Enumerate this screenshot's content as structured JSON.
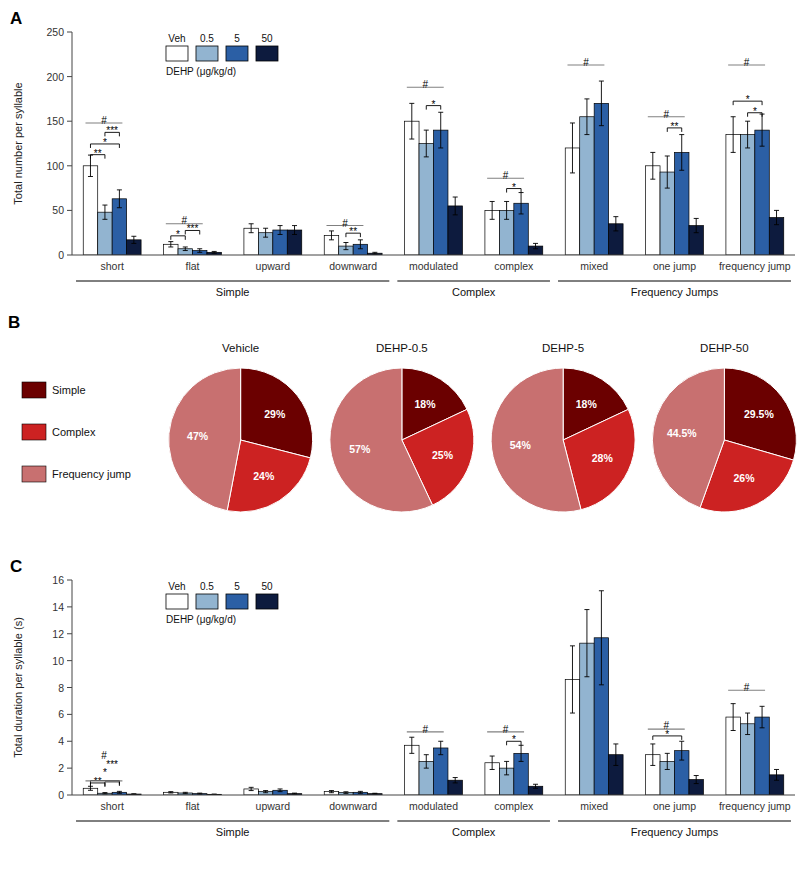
{
  "chart_data": [
    {
      "type": "bar",
      "title": "A",
      "categories": [
        "short",
        "flat",
        "upward",
        "downward",
        "modulated",
        "complex",
        "mixed",
        "one jump",
        "frequency jump"
      ],
      "series": [
        {
          "name": "Veh",
          "color": "#FFFFFF",
          "values": [
            100,
            12,
            30,
            22,
            150,
            50,
            120,
            100,
            135
          ],
          "errors": [
            12,
            3,
            5,
            5,
            20,
            10,
            28,
            15,
            20
          ]
        },
        {
          "name": "0.5",
          "color": "#92B4D0",
          "values": [
            48,
            7,
            25,
            10,
            125,
            50,
            155,
            93,
            135
          ],
          "errors": [
            8,
            2,
            5,
            4,
            15,
            10,
            20,
            18,
            15
          ]
        },
        {
          "name": "5",
          "color": "#2B5FA5",
          "values": [
            63,
            5,
            28,
            12,
            140,
            58,
            170,
            115,
            140
          ],
          "errors": [
            10,
            2,
            5,
            5,
            20,
            12,
            25,
            20,
            18
          ]
        },
        {
          "name": "50",
          "color": "#0D1B3E",
          "values": [
            17,
            3,
            28,
            2,
            55,
            10,
            35,
            33,
            42
          ],
          "errors": [
            4,
            1,
            5,
            1,
            10,
            3,
            8,
            8,
            8
          ]
        }
      ],
      "ylabel": "Total number per syllable",
      "ylim": [
        0,
        250
      ],
      "yticks": [
        0,
        50,
        100,
        150,
        200,
        250
      ],
      "grid": false,
      "legend": "top-left",
      "legend_title": "DEHP (μg/kg/d)",
      "groups": [
        {
          "label": "Simple",
          "from": "short",
          "to": "downward"
        },
        {
          "label": "Complex",
          "from": "modulated",
          "to": "complex"
        },
        {
          "label": "Frequency Jumps",
          "from": "mixed",
          "to": "frequency jump"
        }
      ],
      "annotations": [
        {
          "text": "**",
          "category": "short",
          "from": "Veh",
          "to": "0.5",
          "y": 108,
          "line_style": "bracket",
          "color": "black"
        },
        {
          "text": "*",
          "category": "short",
          "from": "Veh",
          "to": "5",
          "y": 120,
          "line_style": "bracket",
          "color": "black"
        },
        {
          "text": "***",
          "category": "short",
          "from": "0.5",
          "to": "5",
          "y": 133,
          "line_style": "bracket",
          "color": "black"
        },
        {
          "text": "#",
          "category": "short",
          "from": "Veh",
          "to": "5",
          "y": 148,
          "line_style": "solid",
          "color": "gray"
        },
        {
          "text": "*",
          "category": "flat",
          "from": "Veh",
          "to": "0.5",
          "y": 17,
          "line_style": "bracket",
          "color": "black"
        },
        {
          "text": "***",
          "category": "flat",
          "from": "0.5",
          "to": "5",
          "y": 23,
          "line_style": "bracket",
          "color": "black"
        },
        {
          "text": "#",
          "category": "flat",
          "from": "Veh",
          "to": "5",
          "y": 35,
          "line_style": "solid",
          "color": "gray"
        },
        {
          "text": "**",
          "category": "downward",
          "from": "0.5",
          "to": "5",
          "y": 20,
          "line_style": "bracket",
          "color": "black"
        },
        {
          "text": "#",
          "category": "downward",
          "from": "Veh",
          "to": "5",
          "y": 33,
          "line_style": "solid",
          "color": "gray"
        },
        {
          "text": "*",
          "category": "modulated",
          "from": "0.5",
          "to": "5",
          "y": 163,
          "line_style": "bracket",
          "color": "black"
        },
        {
          "text": "#",
          "category": "modulated",
          "from": "Veh",
          "to": "5",
          "y": 188,
          "line_style": "solid",
          "color": "gray"
        },
        {
          "text": "*",
          "category": "complex",
          "from": "0.5",
          "to": "5",
          "y": 70,
          "line_style": "bracket",
          "color": "black"
        },
        {
          "text": "#",
          "category": "complex",
          "from": "Veh",
          "to": "5",
          "y": 86,
          "line_style": "solid",
          "color": "gray"
        },
        {
          "text": "#",
          "category": "mixed",
          "from": "Veh",
          "to": "5",
          "y": 213,
          "line_style": "solid",
          "color": "gray"
        },
        {
          "text": "**",
          "category": "one jump",
          "from": "0.5",
          "to": "5",
          "y": 138,
          "line_style": "bracket",
          "color": "black"
        },
        {
          "text": "#",
          "category": "one jump",
          "from": "Veh",
          "to": "5",
          "y": 155,
          "line_style": "solid",
          "color": "gray"
        },
        {
          "text": "*",
          "category": "frequency jump",
          "from": "0.5",
          "to": "5",
          "y": 155,
          "line_style": "bracket",
          "color": "black"
        },
        {
          "text": "*",
          "category": "frequency jump",
          "from": "Veh",
          "to": "5",
          "y": 168,
          "line_style": "bracket",
          "color": "black"
        },
        {
          "text": "#",
          "category": "frequency jump",
          "from": "Veh",
          "to": "5",
          "y": 213,
          "line_style": "solid",
          "color": "gray"
        }
      ]
    },
    {
      "type": "pie",
      "title": "B",
      "categories": [
        "Simple",
        "Complex",
        "Frequency jump"
      ],
      "colors": [
        "#6B0000",
        "#CC2222",
        "#C87070"
      ],
      "legend": "left",
      "data_labels": true,
      "series": [
        {
          "name": "Vehicle",
          "values": [
            29,
            24,
            47
          ],
          "value_labels": [
            "29%",
            "24%",
            "47%"
          ]
        },
        {
          "name": "DEHP-0.5",
          "values": [
            18,
            25,
            57
          ],
          "value_labels": [
            "18%",
            "25%",
            "57%"
          ]
        },
        {
          "name": "DEHP-5",
          "values": [
            18,
            28,
            54
          ],
          "value_labels": [
            "18%",
            "28%",
            "54%"
          ]
        },
        {
          "name": "DEHP-50",
          "values": [
            29.5,
            26,
            44.5
          ],
          "value_labels": [
            "29.5%",
            "26%",
            "44.5%"
          ]
        }
      ]
    },
    {
      "type": "bar",
      "title": "C",
      "categories": [
        "short",
        "flat",
        "upward",
        "downward",
        "modulated",
        "complex",
        "mixed",
        "one jump",
        "frequency jump"
      ],
      "series": [
        {
          "name": "Veh",
          "color": "#FFFFFF",
          "values": [
            0.5,
            0.2,
            0.45,
            0.25,
            3.7,
            2.4,
            8.6,
            3.0,
            5.8
          ],
          "errors": [
            0.15,
            0.05,
            0.12,
            0.08,
            0.6,
            0.5,
            2.5,
            0.8,
            1.0
          ]
        },
        {
          "name": "0.5",
          "color": "#92B4D0",
          "values": [
            0.13,
            0.15,
            0.25,
            0.18,
            2.5,
            2.0,
            11.3,
            2.5,
            5.3
          ],
          "errors": [
            0.05,
            0.05,
            0.08,
            0.06,
            0.5,
            0.5,
            2.5,
            0.6,
            0.8
          ]
        },
        {
          "name": "5",
          "color": "#2B5FA5",
          "values": [
            0.2,
            0.1,
            0.35,
            0.2,
            3.5,
            3.1,
            11.7,
            3.3,
            5.8
          ],
          "errors": [
            0.07,
            0.04,
            0.1,
            0.07,
            0.5,
            0.6,
            3.5,
            0.7,
            0.8
          ]
        },
        {
          "name": "50",
          "color": "#0D1B3E",
          "values": [
            0.07,
            0.05,
            0.1,
            0.1,
            1.1,
            0.65,
            3.0,
            1.15,
            1.5
          ],
          "errors": [
            0.02,
            0.02,
            0.04,
            0.03,
            0.2,
            0.15,
            0.8,
            0.3,
            0.4
          ]
        }
      ],
      "ylabel": "Total duration per syllable (s)",
      "ylim": [
        0,
        16
      ],
      "yticks": [
        0,
        2,
        4,
        6,
        8,
        10,
        12,
        14,
        16
      ],
      "grid": false,
      "legend": "top-left",
      "legend_title": "DEHP (μg/kg/d)",
      "groups": [
        {
          "label": "Simple",
          "from": "short",
          "to": "downward"
        },
        {
          "label": "Complex",
          "from": "modulated",
          "to": "complex"
        },
        {
          "label": "Frequency Jumps",
          "from": "mixed",
          "to": "frequency jump"
        }
      ],
      "annotations": [
        {
          "text": "**",
          "category": "short",
          "from": "Veh",
          "to": "0.5",
          "y": 0.6,
          "line_style": "bracket",
          "color": "black"
        },
        {
          "text": "*",
          "category": "short",
          "from": "Veh",
          "to": "5",
          "y": 0.78,
          "line_style": "bracket",
          "color": "black"
        },
        {
          "text": "***",
          "category": "short",
          "from": "0.5",
          "to": "5",
          "y": 0.68,
          "line_style": "bracket",
          "color": "black"
        },
        {
          "text": "#",
          "category": "short",
          "from": "Veh",
          "to": "5",
          "y": 1.05,
          "line_style": "solid",
          "color": "gray"
        },
        {
          "text": "#",
          "category": "modulated",
          "from": "Veh",
          "to": "5",
          "y": 4.7,
          "line_style": "solid",
          "color": "gray"
        },
        {
          "text": "*",
          "category": "complex",
          "from": "0.5",
          "to": "5",
          "y": 3.7,
          "line_style": "bracket",
          "color": "black"
        },
        {
          "text": "#",
          "category": "complex",
          "from": "Veh",
          "to": "5",
          "y": 4.7,
          "line_style": "solid",
          "color": "gray"
        },
        {
          "text": "*",
          "category": "one jump",
          "from": "Veh",
          "to": "5",
          "y": 4.1,
          "line_style": "bracket",
          "color": "black"
        },
        {
          "text": "#",
          "category": "one jump",
          "from": "Veh",
          "to": "5",
          "y": 4.9,
          "line_style": "solid",
          "color": "gray"
        },
        {
          "text": "#",
          "category": "frequency jump",
          "from": "Veh",
          "to": "5",
          "y": 7.8,
          "line_style": "solid",
          "color": "gray"
        }
      ]
    }
  ]
}
